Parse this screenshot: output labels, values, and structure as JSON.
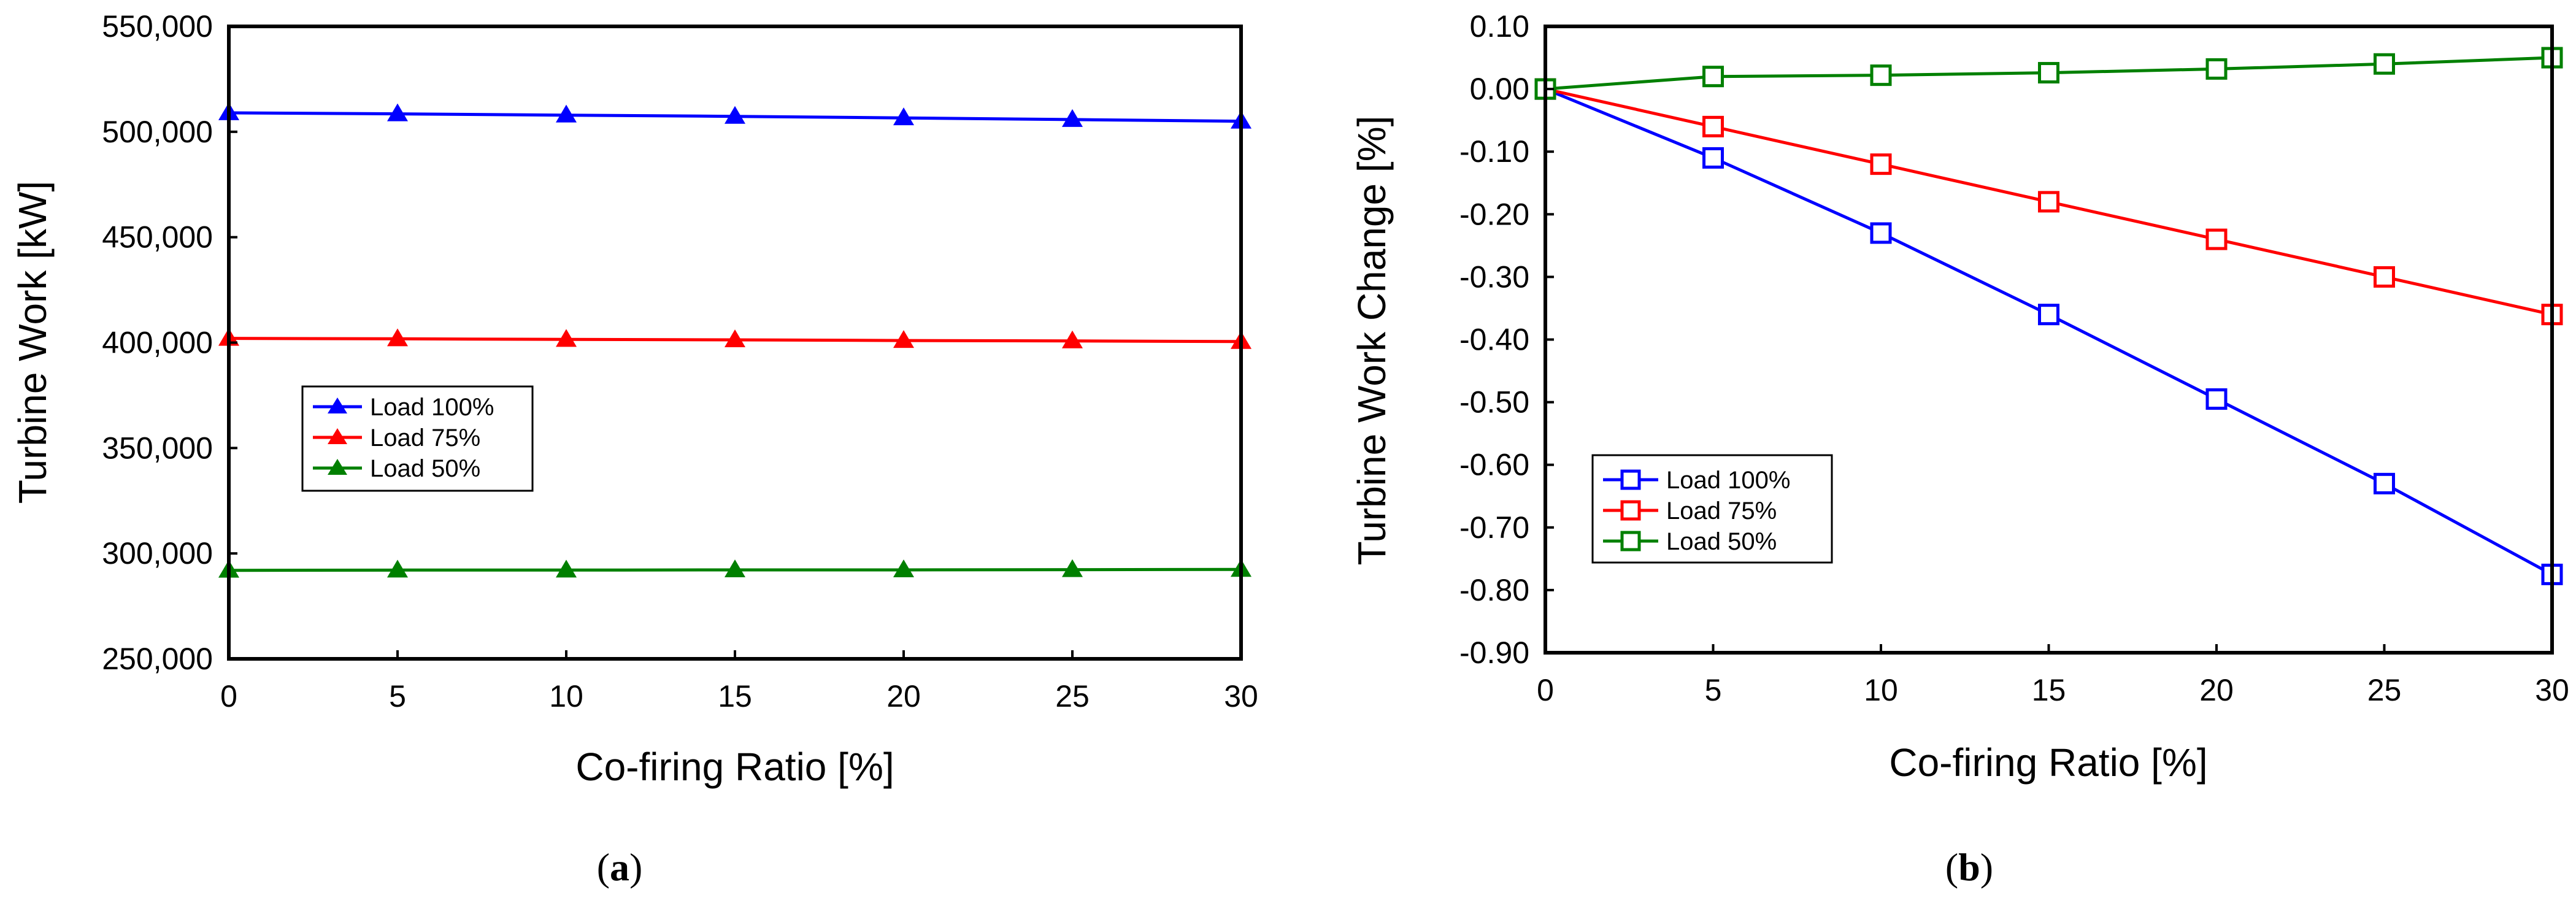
{
  "chart_data": [
    {
      "type": "line",
      "panel_label": "a",
      "title": "",
      "xlabel": "Co-firing Ratio [%]",
      "ylabel": "Turbine Work [kW]",
      "x": [
        0,
        5,
        10,
        15,
        20,
        25,
        30
      ],
      "xlim": [
        0,
        30
      ],
      "ylim": [
        250000,
        550000
      ],
      "xticks": [
        "0",
        "5",
        "10",
        "15",
        "20",
        "25",
        "30"
      ],
      "yticks": [
        "250,000",
        "300,000",
        "350,000",
        "400,000",
        "450,000",
        "500,000",
        "550,000"
      ],
      "grid": false,
      "marker": "triangle",
      "legend_position": "middle-left",
      "series": [
        {
          "name": "Load 100%",
          "color": "#0000ff",
          "values": [
            509000,
            508500,
            507900,
            507300,
            506600,
            505800,
            505000
          ]
        },
        {
          "name": "Load 75%",
          "color": "#ff0000",
          "values": [
            402000,
            401800,
            401500,
            401300,
            401000,
            400800,
            400500
          ]
        },
        {
          "name": "Load 50%",
          "color": "#008000",
          "values": [
            292000,
            292100,
            292100,
            292200,
            292200,
            292300,
            292400
          ]
        }
      ]
    },
    {
      "type": "line",
      "panel_label": "b",
      "title": "",
      "xlabel": "Co-firing Ratio [%]",
      "ylabel": "Turbine Work Change [%]",
      "x": [
        0,
        5,
        10,
        15,
        20,
        25,
        30
      ],
      "xlim": [
        0,
        30
      ],
      "ylim": [
        -0.9,
        0.1
      ],
      "xticks": [
        "0",
        "5",
        "10",
        "15",
        "20",
        "25",
        "30"
      ],
      "yticks": [
        "-0.90",
        "-0.80",
        "-0.70",
        "-0.60",
        "-0.50",
        "-0.40",
        "-0.30",
        "-0.20",
        "-0.10",
        "0.00",
        "0.10"
      ],
      "grid": false,
      "marker": "square",
      "legend_position": "bottom-left",
      "series": [
        {
          "name": "Load 100%",
          "color": "#0000ff",
          "values": [
            0.0,
            -0.11,
            -0.23,
            -0.36,
            -0.495,
            -0.63,
            -0.775
          ]
        },
        {
          "name": "Load 75%",
          "color": "#ff0000",
          "values": [
            0.0,
            -0.06,
            -0.12,
            -0.18,
            -0.24,
            -0.3,
            -0.36
          ]
        },
        {
          "name": "Load 50%",
          "color": "#008000",
          "values": [
            0.0,
            0.02,
            0.022,
            0.026,
            0.032,
            0.04,
            0.05
          ]
        }
      ]
    }
  ]
}
